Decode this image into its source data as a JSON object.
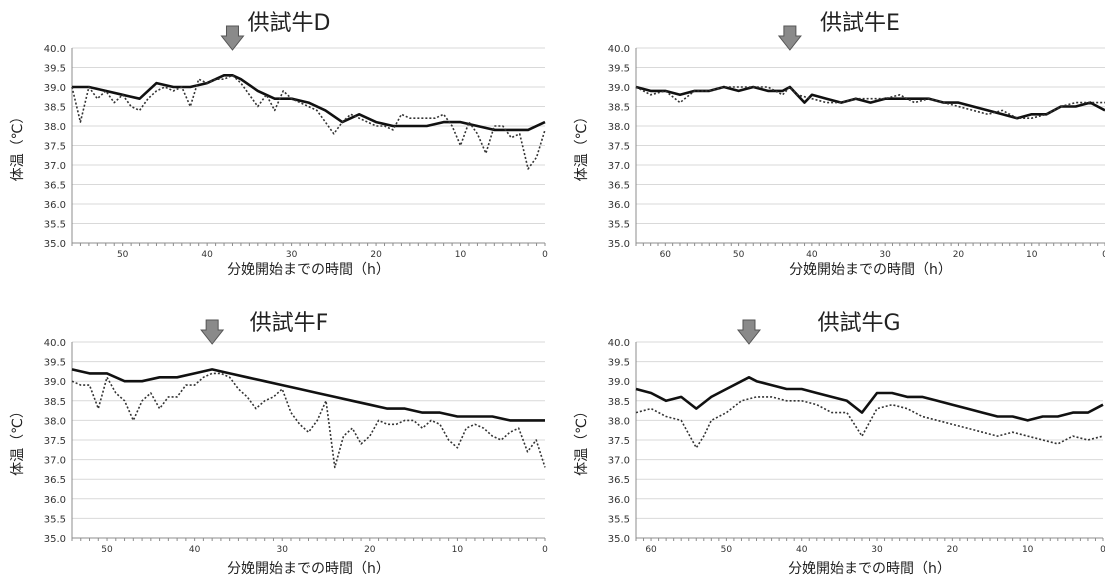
{
  "chart_data": [
    {
      "type": "line",
      "title": "供試牛D",
      "xlabel": "分娩開始までの時間（h）",
      "ylabel": "体温（℃）",
      "ylim": [
        35.0,
        40.0
      ],
      "ytick_labels": [
        "35.0",
        "35.5",
        "36.0",
        "36.5",
        "37.0",
        "37.5",
        "38.0",
        "38.5",
        "39.0",
        "39.5",
        "40.0"
      ],
      "xlim": [
        56,
        0
      ],
      "xtick_labels": [
        "50",
        "40",
        "30",
        "20",
        "10",
        "0"
      ],
      "arrow_at": 37,
      "series": [
        {
          "style": "solid",
          "x": [
            56,
            54,
            52,
            50,
            48,
            46,
            44,
            42,
            40,
            38,
            37,
            36,
            34,
            32,
            30,
            28,
            26,
            24,
            22,
            20,
            18,
            16,
            14,
            12,
            10,
            8,
            6,
            4,
            2,
            0
          ],
          "values": [
            39.0,
            39.0,
            38.9,
            38.8,
            38.7,
            39.1,
            39.0,
            39.0,
            39.1,
            39.3,
            39.3,
            39.2,
            38.9,
            38.7,
            38.7,
            38.6,
            38.4,
            38.1,
            38.3,
            38.1,
            38.0,
            38.0,
            38.0,
            38.1,
            38.1,
            38.0,
            37.9,
            37.9,
            37.9,
            38.1
          ]
        },
        {
          "style": "dotted",
          "x": [
            56,
            55,
            54,
            53,
            52,
            51,
            50,
            49,
            48,
            47,
            46,
            45,
            44,
            43,
            42,
            41,
            40,
            39,
            38,
            37,
            36,
            35,
            34,
            33,
            32,
            31,
            30,
            29,
            28,
            27,
            26,
            25,
            24,
            23,
            22,
            21,
            20,
            19,
            18,
            17,
            16,
            15,
            14,
            13,
            12,
            11,
            10,
            9,
            8,
            7,
            6,
            5,
            4,
            3,
            2,
            1,
            0
          ],
          "values": [
            39.0,
            38.1,
            39.0,
            38.7,
            38.9,
            38.6,
            38.8,
            38.5,
            38.4,
            38.7,
            38.9,
            39.0,
            38.9,
            39.0,
            38.5,
            39.2,
            39.1,
            39.2,
            39.2,
            39.3,
            39.1,
            38.8,
            38.5,
            38.8,
            38.4,
            38.9,
            38.7,
            38.6,
            38.5,
            38.4,
            38.1,
            37.8,
            38.1,
            38.3,
            38.2,
            38.1,
            38.0,
            38.0,
            37.9,
            38.3,
            38.2,
            38.2,
            38.2,
            38.2,
            38.3,
            38.0,
            37.5,
            38.1,
            37.8,
            37.3,
            38.0,
            38.0,
            37.7,
            37.8,
            36.9,
            37.2,
            37.9
          ]
        }
      ]
    },
    {
      "type": "line",
      "title": "供試牛E",
      "xlabel": "分娩開始までの時間（h）",
      "ylabel": "体温（℃）",
      "ylim": [
        35.0,
        40.0
      ],
      "ytick_labels": [
        "35.0",
        "35.5",
        "36.0",
        "36.5",
        "37.0",
        "37.5",
        "38.0",
        "38.5",
        "39.0",
        "39.5",
        "40.0"
      ],
      "xlim": [
        64,
        0
      ],
      "xtick_labels": [
        "60",
        "50",
        "40",
        "30",
        "20",
        "10",
        "0"
      ],
      "arrow_at": 43,
      "series": [
        {
          "style": "solid",
          "x": [
            64,
            62,
            60,
            58,
            56,
            54,
            52,
            50,
            48,
            46,
            44,
            43,
            42,
            41,
            40,
            38,
            36,
            34,
            32,
            30,
            28,
            26,
            24,
            22,
            20,
            18,
            16,
            14,
            12,
            10,
            8,
            6,
            4,
            2,
            0
          ],
          "values": [
            39.0,
            38.9,
            38.9,
            38.8,
            38.9,
            38.9,
            39.0,
            38.9,
            39.0,
            38.9,
            38.9,
            39.0,
            38.8,
            38.6,
            38.8,
            38.7,
            38.6,
            38.7,
            38.6,
            38.7,
            38.7,
            38.7,
            38.7,
            38.6,
            38.6,
            38.5,
            38.4,
            38.3,
            38.2,
            38.3,
            38.3,
            38.5,
            38.5,
            38.6,
            38.4
          ]
        },
        {
          "style": "dotted",
          "x": [
            64,
            62,
            60,
            58,
            56,
            54,
            52,
            50,
            48,
            46,
            44,
            43,
            42,
            40,
            38,
            36,
            34,
            32,
            30,
            28,
            26,
            24,
            22,
            20,
            18,
            16,
            14,
            12,
            10,
            8,
            6,
            4,
            2,
            0
          ],
          "values": [
            39.0,
            38.8,
            38.9,
            38.6,
            38.9,
            38.9,
            39.0,
            39.0,
            39.0,
            39.0,
            38.8,
            39.0,
            38.8,
            38.7,
            38.6,
            38.6,
            38.7,
            38.7,
            38.7,
            38.8,
            38.6,
            38.7,
            38.6,
            38.5,
            38.4,
            38.3,
            38.4,
            38.2,
            38.2,
            38.3,
            38.5,
            38.6,
            38.6,
            38.6
          ]
        }
      ]
    },
    {
      "type": "line",
      "title": "供試牛F",
      "xlabel": "分娩開始までの時間（h）",
      "ylabel": "体温（℃）",
      "ylim": [
        35.0,
        40.0
      ],
      "ytick_labels": [
        "35.0",
        "35.5",
        "36.0",
        "36.5",
        "37.0",
        "37.5",
        "38.0",
        "38.5",
        "39.0",
        "39.5",
        "40.0"
      ],
      "xlim": [
        54,
        0
      ],
      "xtick_labels": [
        "50",
        "40",
        "30",
        "20",
        "10",
        "0"
      ],
      "arrow_at": 38,
      "series": [
        {
          "style": "solid",
          "x": [
            54,
            52,
            50,
            48,
            46,
            44,
            42,
            40,
            38,
            36,
            34,
            32,
            30,
            28,
            26,
            24,
            22,
            20,
            18,
            16,
            14,
            12,
            10,
            8,
            6,
            4,
            2,
            0
          ],
          "values": [
            39.3,
            39.2,
            39.2,
            39.0,
            39.0,
            39.1,
            39.1,
            39.2,
            39.3,
            39.2,
            39.1,
            39.0,
            38.9,
            38.8,
            38.7,
            38.6,
            38.5,
            38.4,
            38.3,
            38.3,
            38.2,
            38.2,
            38.1,
            38.1,
            38.1,
            38.0,
            38.0,
            38.0
          ]
        },
        {
          "style": "dotted",
          "x": [
            54,
            53,
            52,
            51,
            50,
            49,
            48,
            47,
            46,
            45,
            44,
            43,
            42,
            41,
            40,
            39,
            38,
            37,
            36,
            35,
            34,
            33,
            32,
            31,
            30,
            29,
            28,
            27,
            26,
            25,
            24,
            23,
            22,
            21,
            20,
            19,
            18,
            17,
            16,
            15,
            14,
            13,
            12,
            11,
            10,
            9,
            8,
            7,
            6,
            5,
            4,
            3,
            2,
            1,
            0
          ],
          "values": [
            39.0,
            38.9,
            38.9,
            38.3,
            39.1,
            38.7,
            38.5,
            38.0,
            38.5,
            38.7,
            38.3,
            38.6,
            38.6,
            38.9,
            38.9,
            39.1,
            39.2,
            39.2,
            39.1,
            38.8,
            38.6,
            38.3,
            38.5,
            38.6,
            38.8,
            38.2,
            37.9,
            37.7,
            38.0,
            38.5,
            36.8,
            37.6,
            37.8,
            37.4,
            37.6,
            38.0,
            37.9,
            37.9,
            38.0,
            38.0,
            37.8,
            38.0,
            37.9,
            37.5,
            37.3,
            37.8,
            37.9,
            37.8,
            37.6,
            37.5,
            37.7,
            37.8,
            37.2,
            37.5,
            36.8
          ]
        }
      ]
    },
    {
      "type": "line",
      "title": "供試牛G",
      "xlabel": "分娩開始までの時間（h）",
      "ylabel": "体温（℃）",
      "ylim": [
        35.0,
        40.0
      ],
      "ytick_labels": [
        "35.0",
        "35.5",
        "36.0",
        "36.5",
        "37.0",
        "37.5",
        "38.0",
        "38.5",
        "39.0",
        "39.5",
        "40.0"
      ],
      "xlim": [
        62,
        0
      ],
      "xtick_labels": [
        "60",
        "50",
        "40",
        "30",
        "20",
        "10",
        "0"
      ],
      "arrow_at": 47,
      "series": [
        {
          "style": "solid",
          "x": [
            62,
            60,
            58,
            56,
            54,
            52,
            50,
            48,
            47,
            46,
            44,
            42,
            40,
            38,
            36,
            34,
            32,
            30,
            28,
            26,
            24,
            22,
            20,
            18,
            16,
            14,
            12,
            10,
            8,
            6,
            4,
            2,
            0
          ],
          "values": [
            38.8,
            38.7,
            38.5,
            38.6,
            38.3,
            38.6,
            38.8,
            39.0,
            39.1,
            39.0,
            38.9,
            38.8,
            38.8,
            38.7,
            38.6,
            38.5,
            38.2,
            38.7,
            38.7,
            38.6,
            38.6,
            38.5,
            38.4,
            38.3,
            38.2,
            38.1,
            38.1,
            38.0,
            38.1,
            38.1,
            38.2,
            38.2,
            38.4
          ]
        },
        {
          "style": "dotted",
          "x": [
            62,
            60,
            58,
            56,
            54,
            53,
            52,
            50,
            48,
            46,
            44,
            42,
            40,
            38,
            36,
            34,
            32,
            30,
            28,
            26,
            24,
            22,
            20,
            18,
            16,
            14,
            12,
            10,
            8,
            6,
            4,
            2,
            0
          ],
          "values": [
            38.2,
            38.3,
            38.1,
            38.0,
            37.3,
            37.6,
            38.0,
            38.2,
            38.5,
            38.6,
            38.6,
            38.5,
            38.5,
            38.4,
            38.2,
            38.2,
            37.6,
            38.3,
            38.4,
            38.3,
            38.1,
            38.0,
            37.9,
            37.8,
            37.7,
            37.6,
            37.7,
            37.6,
            37.5,
            37.4,
            37.6,
            37.5,
            37.6
          ]
        }
      ]
    }
  ]
}
